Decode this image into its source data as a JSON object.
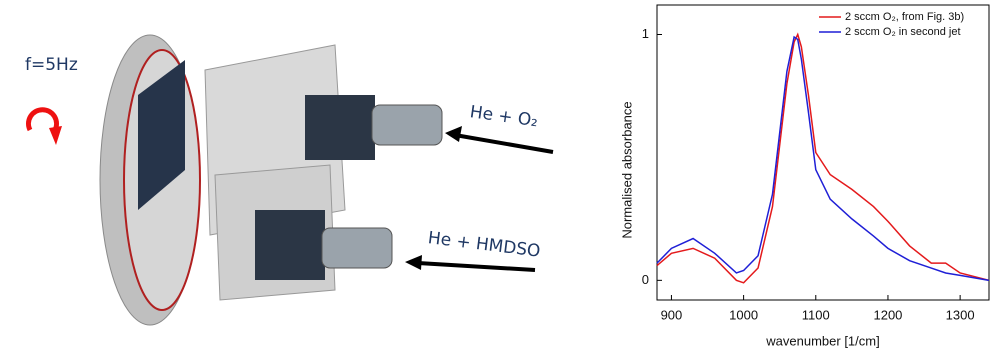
{
  "labels": {
    "frequency": "f=5Hz",
    "jet_1": "He + O₂",
    "jet_2": "He + HMDSO"
  },
  "chart_data": {
    "type": "line",
    "x_label": "wavenumber [1/cm]",
    "y_label": "Normalised absorbance",
    "x": [
      880,
      900,
      930,
      960,
      990,
      1000,
      1020,
      1040,
      1060,
      1070,
      1075,
      1080,
      1090,
      1100,
      1120,
      1150,
      1180,
      1200,
      1230,
      1260,
      1280,
      1300,
      1340
    ],
    "series": [
      {
        "name": "2 sccm O₂, from Fig. 3b)",
        "color": "#e41a1c",
        "values": [
          0.06,
          0.11,
          0.13,
          0.09,
          0.0,
          -0.01,
          0.05,
          0.3,
          0.8,
          0.97,
          1.0,
          0.95,
          0.75,
          0.52,
          0.43,
          0.37,
          0.3,
          0.24,
          0.14,
          0.07,
          0.07,
          0.03,
          0.0
        ]
      },
      {
        "name": "2 sccm O₂ in second jet",
        "color": "#1f1fd6",
        "values": [
          0.07,
          0.13,
          0.17,
          0.11,
          0.03,
          0.04,
          0.1,
          0.35,
          0.85,
          0.99,
          0.98,
          0.9,
          0.68,
          0.45,
          0.33,
          0.25,
          0.18,
          0.13,
          0.08,
          0.05,
          0.03,
          0.02,
          0.0
        ]
      }
    ],
    "xlim": [
      880,
      1340
    ],
    "ylim": [
      -0.08,
      1.12
    ],
    "xticks": [
      900,
      1000,
      1100,
      1200,
      1300
    ],
    "yticks": [
      0,
      1
    ],
    "legend": "upper right"
  }
}
